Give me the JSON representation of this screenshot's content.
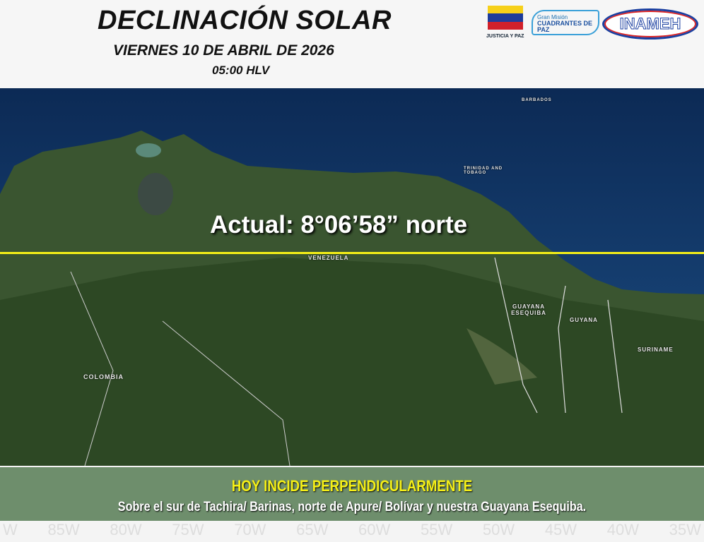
{
  "header": {
    "title": "DECLINACIÓN SOLAR",
    "date": "VIERNES 10 DE ABRIL DE 2026",
    "time": "05:00 HLV",
    "logos": {
      "justicia": "JUSTICIA Y PAZ",
      "cuadrantes_top": "Gran Misión",
      "cuadrantes_main": "CUADRANTES DE PAZ",
      "inameh": "INAMEH"
    }
  },
  "map": {
    "declination_label": "Actual:  8°06’58” norte",
    "line_color": "#f5ef17",
    "labels": {
      "venezuela": "VENEZUELA",
      "colombia": "COLOMBIA",
      "esequiba": "GUAYANA ESEQUIBA",
      "guyana": "GUYANA",
      "suriname": "SURINAME",
      "trinidad": "TRINIDAD AND TOBAGO",
      "barbados": "BARBADOS"
    }
  },
  "banner": {
    "headline": "HOY INCIDE PERPENDICULARMENTE",
    "detail": "Sobre el sur de Tachira/ Barinas, norte de Apure/ Bolívar  y nuestra Guayana Esequiba."
  },
  "axis_labels": [
    "W",
    "85W",
    "80W",
    "75W",
    "70W",
    "65W",
    "60W",
    "55W",
    "50W",
    "45W",
    "40W",
    "35W"
  ]
}
